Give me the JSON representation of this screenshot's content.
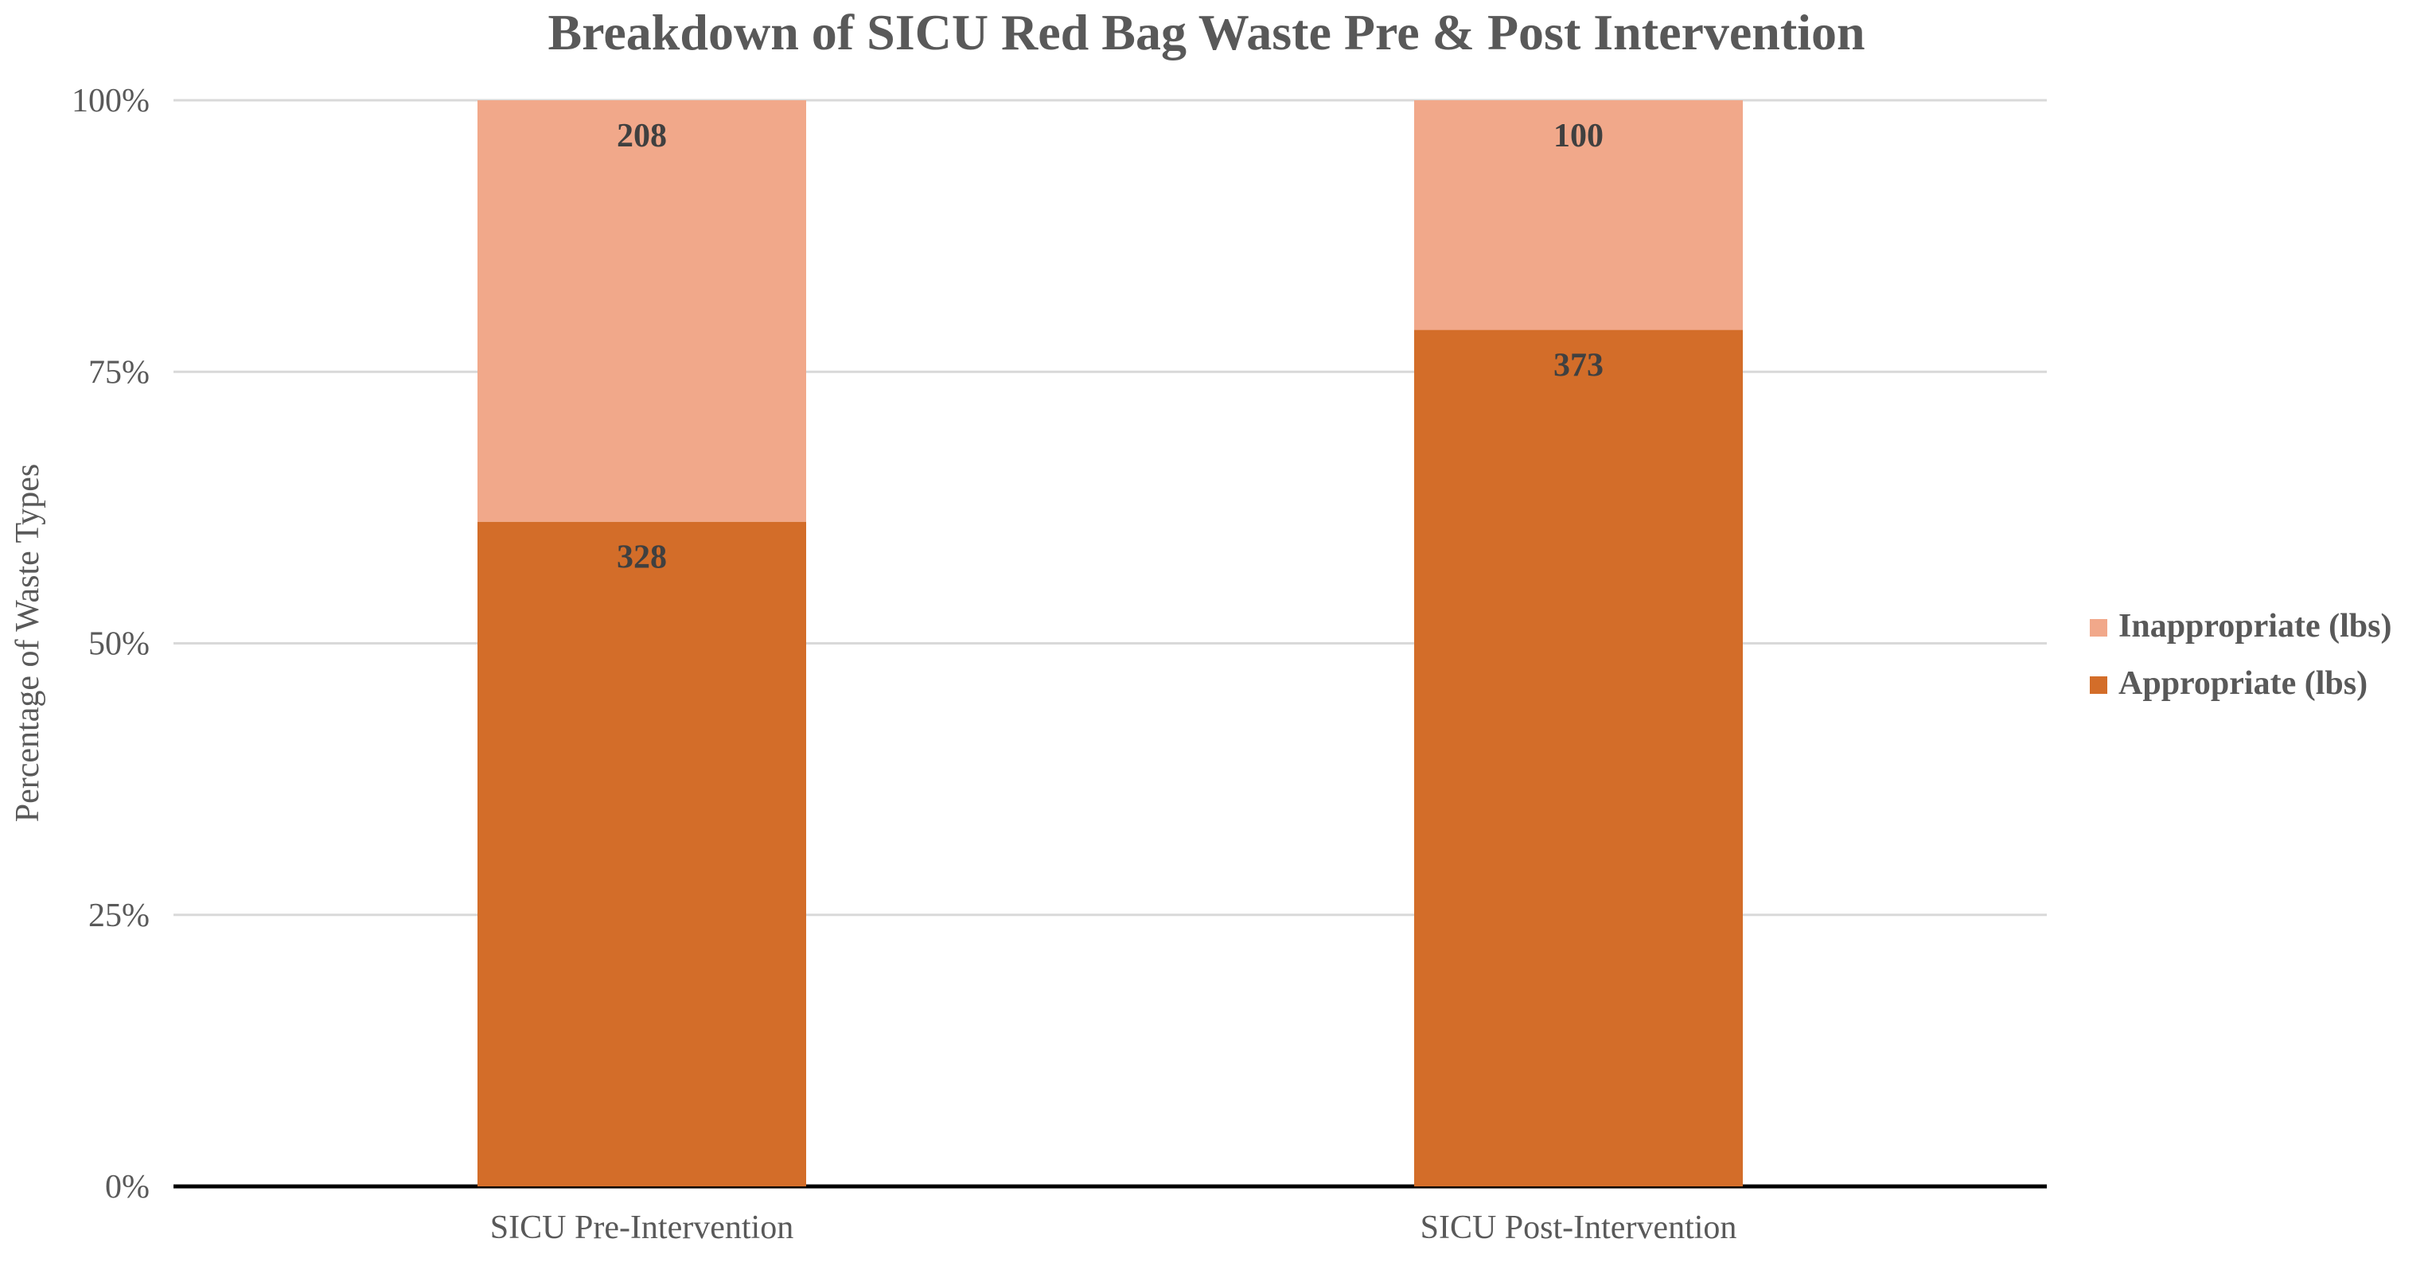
{
  "chart_data": {
    "type": "bar",
    "stacked": "percent",
    "title": "Breakdown of SICU Red Bag Waste Pre & Post Intervention",
    "xlabel": "",
    "ylabel": "Percentage of Waste Types",
    "ylim": [
      0,
      100
    ],
    "yticks": [
      "0%",
      "25%",
      "50%",
      "75%",
      "100%"
    ],
    "categories": [
      "SICU Pre-Intervention",
      "SICU Post-Intervention"
    ],
    "series": [
      {
        "name": "Appropriate (lbs)",
        "values": [
          328,
          373
        ],
        "color": "#D36D29"
      },
      {
        "name": "Inappropriate (lbs)",
        "values": [
          208,
          100
        ],
        "color": "#F1A88A"
      }
    ],
    "legend": {
      "position": "right",
      "order": [
        "Inappropriate (lbs)",
        "Appropriate (lbs)"
      ]
    },
    "grid": true
  }
}
